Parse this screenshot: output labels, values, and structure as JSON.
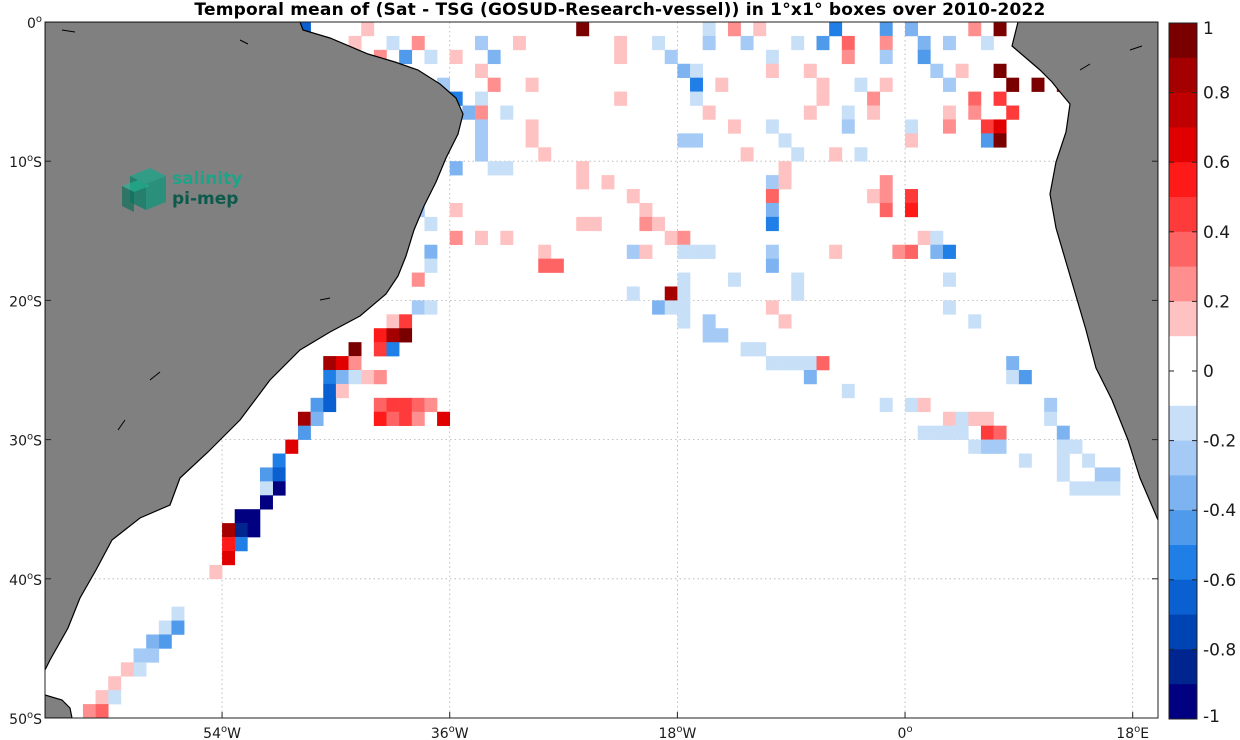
{
  "title": "Temporal mean of (Sat - TSG (GOSUD-Research-vessel)) in 1°x1° boxes over 2010-2022",
  "logo": {
    "line1": "salinity",
    "line2": "pi-mep"
  },
  "map": {
    "lon_range": [
      -68,
      20
    ],
    "lat_range": [
      -50,
      0
    ],
    "xticks": [
      {
        "value": -54,
        "num": "54",
        "deg": "o",
        "hemi": "W"
      },
      {
        "value": -36,
        "num": "36",
        "deg": "o",
        "hemi": "W"
      },
      {
        "value": -18,
        "num": "18",
        "deg": "o",
        "hemi": "W"
      },
      {
        "value": 0,
        "num": "0",
        "deg": "o",
        "hemi": ""
      },
      {
        "value": 18,
        "num": "18",
        "deg": "o",
        "hemi": "E"
      }
    ],
    "yticks": [
      {
        "value": 0,
        "num": "0",
        "deg": "o",
        "hemi": ""
      },
      {
        "value": -10,
        "num": "10",
        "deg": "o",
        "hemi": "S"
      },
      {
        "value": -20,
        "num": "20",
        "deg": "o",
        "hemi": "S"
      },
      {
        "value": -30,
        "num": "30",
        "deg": "o",
        "hemi": "S"
      },
      {
        "value": -40,
        "num": "40",
        "deg": "o",
        "hemi": "S"
      },
      {
        "value": -50,
        "num": "50",
        "deg": "o",
        "hemi": "S"
      }
    ],
    "land_color": "#808080",
    "grid": "dotted"
  },
  "colorbar": {
    "range": [
      -1,
      1
    ],
    "ticks": [
      "1",
      "0.8",
      "0.6",
      "0.4",
      "0.2",
      "0",
      "-0.2",
      "-0.4",
      "-0.6",
      "-0.8",
      "-1"
    ],
    "colors": [
      "#7a0000",
      "#a40000",
      "#c00000",
      "#e00000",
      "#ff1a1a",
      "#ff3a3a",
      "#ff6464",
      "#ff8f8f",
      "#ffc2c2",
      "#ffffff",
      "#ffffff",
      "#c8dff8",
      "#a4caf5",
      "#7db3f0",
      "#4f9aeb",
      "#1f7fe6",
      "#0a5fd1",
      "#0044b3",
      "#00258f",
      "#000080"
    ]
  },
  "chart_data": {
    "type": "heatmap",
    "title": "Temporal mean of (Sat - TSG (GOSUD-Research-vessel)) in 1°x1° boxes over 2010-2022",
    "x_units": "degrees longitude",
    "y_units": "degrees latitude",
    "cells": [
      [
        -47.5,
        -0.5,
        -0.6
      ],
      [
        -42.5,
        -0.5,
        0.2
      ],
      [
        -25.5,
        -0.5,
        0.9
      ],
      [
        -15.5,
        -0.5,
        -0.1
      ],
      [
        -13.5,
        -0.5,
        0.3
      ],
      [
        -11.5,
        -0.5,
        0.2
      ],
      [
        -5.5,
        -0.5,
        -0.5
      ],
      [
        -1.5,
        -0.5,
        -0.4
      ],
      [
        0.5,
        -0.5,
        -0.3
      ],
      [
        5.5,
        -0.5,
        0.3
      ],
      [
        7.5,
        -0.5,
        0.9
      ],
      [
        9.5,
        -0.5,
        -0.5
      ],
      [
        -43.5,
        -1.5,
        0.2
      ],
      [
        -40.5,
        -1.5,
        -0.1
      ],
      [
        -38.5,
        -1.5,
        0.3
      ],
      [
        -33.5,
        -1.5,
        -0.2
      ],
      [
        -30.5,
        -1.5,
        0.2
      ],
      [
        -22.5,
        -1.5,
        0.2
      ],
      [
        -19.5,
        -1.5,
        -0.1
      ],
      [
        -15.5,
        -1.5,
        -0.2
      ],
      [
        -12.5,
        -1.5,
        -0.2
      ],
      [
        -8.5,
        -1.5,
        -0.1
      ],
      [
        -6.5,
        -1.5,
        -0.4
      ],
      [
        -4.5,
        -1.5,
        0.4
      ],
      [
        -1.5,
        -1.5,
        0.3
      ],
      [
        1.5,
        -1.5,
        -0.3
      ],
      [
        3.5,
        -1.5,
        -0.2
      ],
      [
        6.5,
        -1.5,
        -0.1
      ],
      [
        -41.5,
        -2.5,
        0.3
      ],
      [
        -39.5,
        -2.5,
        -0.4
      ],
      [
        -37.5,
        -2.5,
        -0.1
      ],
      [
        -35.5,
        -2.5,
        0.2
      ],
      [
        -32.5,
        -2.5,
        -0.3
      ],
      [
        -22.5,
        -2.5,
        0.2
      ],
      [
        -18.5,
        -2.5,
        -0.2
      ],
      [
        -10.5,
        -2.5,
        -0.1
      ],
      [
        -4.5,
        -2.5,
        0.3
      ],
      [
        -1.5,
        -2.5,
        -0.2
      ],
      [
        1.5,
        -2.5,
        -0.4
      ],
      [
        -33.5,
        -3.5,
        0.2
      ],
      [
        -17.5,
        -3.5,
        -0.3
      ],
      [
        -16.5,
        -3.5,
        -0.1
      ],
      [
        -10.5,
        -3.5,
        0.2
      ],
      [
        -7.5,
        -3.5,
        0.2
      ],
      [
        2.5,
        -3.5,
        -0.2
      ],
      [
        4.5,
        -3.5,
        0.2
      ],
      [
        7.5,
        -3.5,
        1.0
      ],
      [
        -36.5,
        -4.5,
        -0.2
      ],
      [
        -32.5,
        -4.5,
        0.3
      ],
      [
        -29.5,
        -4.5,
        0.2
      ],
      [
        -16.5,
        -4.5,
        -0.5
      ],
      [
        -14.5,
        -4.5,
        0.2
      ],
      [
        -6.5,
        -4.5,
        0.2
      ],
      [
        -3.5,
        -4.5,
        -0.1
      ],
      [
        -1.5,
        -4.5,
        0.2
      ],
      [
        3.5,
        -4.5,
        -0.2
      ],
      [
        8.5,
        -4.5,
        0.9
      ],
      [
        10.5,
        -4.5,
        1.0
      ],
      [
        12.5,
        -4.5,
        0.8
      ],
      [
        -35.5,
        -5.5,
        -0.5
      ],
      [
        -33.5,
        -5.5,
        -0.1
      ],
      [
        -22.5,
        -5.5,
        0.2
      ],
      [
        -16.5,
        -5.5,
        -0.1
      ],
      [
        -6.5,
        -5.5,
        0.2
      ],
      [
        -2.5,
        -5.5,
        0.3
      ],
      [
        5.5,
        -5.5,
        0.4
      ],
      [
        7.5,
        -5.5,
        0.5
      ],
      [
        -34.5,
        -6.5,
        -0.3
      ],
      [
        -33.5,
        -6.5,
        0.3
      ],
      [
        -31.5,
        -6.5,
        -0.1
      ],
      [
        -15.5,
        -6.5,
        0.2
      ],
      [
        -7.5,
        -6.5,
        0.2
      ],
      [
        -4.5,
        -6.5,
        -0.1
      ],
      [
        -2.5,
        -6.5,
        0.2
      ],
      [
        3.5,
        -6.5,
        0.2
      ],
      [
        5.5,
        -6.5,
        0.3
      ],
      [
        8.5,
        -6.5,
        0.5
      ],
      [
        -33.5,
        -7.5,
        -0.2
      ],
      [
        -29.5,
        -7.5,
        0.2
      ],
      [
        -13.5,
        -7.5,
        0.2
      ],
      [
        -10.5,
        -7.5,
        -0.1
      ],
      [
        -4.5,
        -7.5,
        -0.2
      ],
      [
        0.5,
        -7.5,
        -0.1
      ],
      [
        3.5,
        -7.5,
        0.3
      ],
      [
        6.5,
        -7.5,
        0.5
      ],
      [
        7.5,
        -7.5,
        0.7
      ],
      [
        -33.5,
        -8.5,
        -0.2
      ],
      [
        -29.5,
        -8.5,
        0.2
      ],
      [
        -17.5,
        -8.5,
        -0.2
      ],
      [
        -16.5,
        -8.5,
        -0.2
      ],
      [
        -9.5,
        -8.5,
        -0.1
      ],
      [
        0.5,
        -8.5,
        0.2
      ],
      [
        6.5,
        -8.5,
        -0.4
      ],
      [
        7.5,
        -8.5,
        0.9
      ],
      [
        -33.5,
        -9.5,
        -0.2
      ],
      [
        -28.5,
        -9.5,
        0.2
      ],
      [
        -12.5,
        -9.5,
        0.2
      ],
      [
        -8.5,
        -9.5,
        -0.1
      ],
      [
        -5.5,
        -9.5,
        0.2
      ],
      [
        -3.5,
        -9.5,
        -0.1
      ],
      [
        -35.5,
        -10.5,
        -0.3
      ],
      [
        -32.5,
        -10.5,
        -0.1
      ],
      [
        -31.5,
        -10.5,
        -0.1
      ],
      [
        -25.5,
        -10.5,
        0.2
      ],
      [
        -9.5,
        -10.5,
        0.2
      ],
      [
        -25.5,
        -11.5,
        0.2
      ],
      [
        -23.5,
        -11.5,
        0.2
      ],
      [
        -10.5,
        -11.5,
        -0.2
      ],
      [
        -9.5,
        -11.5,
        0.2
      ],
      [
        -1.5,
        -11.5,
        0.3
      ],
      [
        -21.5,
        -12.5,
        0.2
      ],
      [
        -10.5,
        -12.5,
        0.4
      ],
      [
        -2.5,
        -12.5,
        0.2
      ],
      [
        -1.5,
        -12.5,
        0.3
      ],
      [
        0.5,
        -12.5,
        0.5
      ],
      [
        -38.5,
        -13.5,
        -0.2
      ],
      [
        -35.5,
        -13.5,
        0.2
      ],
      [
        -20.5,
        -13.5,
        0.2
      ],
      [
        -10.5,
        -13.5,
        -0.3
      ],
      [
        -1.5,
        -13.5,
        0.4
      ],
      [
        0.5,
        -13.5,
        0.6
      ],
      [
        -37.5,
        -14.5,
        -0.1
      ],
      [
        -25.5,
        -14.5,
        0.2
      ],
      [
        -24.5,
        -14.5,
        0.2
      ],
      [
        -20.5,
        -14.5,
        0.3
      ],
      [
        -19.5,
        -14.5,
        0.2
      ],
      [
        -10.5,
        -14.5,
        -0.5
      ],
      [
        -35.5,
        -15.5,
        0.3
      ],
      [
        -33.5,
        -15.5,
        0.2
      ],
      [
        -31.5,
        -15.5,
        0.2
      ],
      [
        -18.5,
        -15.5,
        0.2
      ],
      [
        -17.5,
        -15.5,
        0.3
      ],
      [
        1.5,
        -15.5,
        0.2
      ],
      [
        2.5,
        -15.5,
        -0.1
      ],
      [
        -37.5,
        -16.5,
        -0.3
      ],
      [
        -28.5,
        -16.5,
        0.2
      ],
      [
        -21.5,
        -16.5,
        -0.2
      ],
      [
        -20.5,
        -16.5,
        0.2
      ],
      [
        -17.5,
        -16.5,
        -0.1
      ],
      [
        -16.5,
        -16.5,
        -0.1
      ],
      [
        -15.5,
        -16.5,
        -0.1
      ],
      [
        -10.5,
        -16.5,
        -0.2
      ],
      [
        -5.5,
        -16.5,
        0.2
      ],
      [
        -0.5,
        -16.5,
        0.3
      ],
      [
        0.5,
        -16.5,
        0.4
      ],
      [
        2.5,
        -16.5,
        -0.3
      ],
      [
        3.5,
        -16.5,
        -0.5
      ],
      [
        -37.5,
        -17.5,
        -0.1
      ],
      [
        -28.5,
        -17.5,
        0.4
      ],
      [
        -27.5,
        -17.5,
        0.4
      ],
      [
        -10.5,
        -17.5,
        -0.3
      ],
      [
        -38.5,
        -18.5,
        0.3
      ],
      [
        -17.5,
        -18.5,
        -0.1
      ],
      [
        -13.5,
        -18.5,
        -0.1
      ],
      [
        -8.5,
        -18.5,
        -0.1
      ],
      [
        3.5,
        -18.5,
        -0.1
      ],
      [
        -21.5,
        -19.5,
        -0.1
      ],
      [
        -18.5,
        -19.5,
        0.8
      ],
      [
        -17.5,
        -19.5,
        -0.1
      ],
      [
        -8.5,
        -19.5,
        -0.1
      ],
      [
        -38.5,
        -20.5,
        -0.2
      ],
      [
        -37.5,
        -20.5,
        -0.1
      ],
      [
        -19.5,
        -20.5,
        -0.3
      ],
      [
        -18.5,
        -20.5,
        -0.1
      ],
      [
        -17.5,
        -20.5,
        -0.1
      ],
      [
        -10.5,
        -20.5,
        0.2
      ],
      [
        3.5,
        -20.5,
        -0.1
      ],
      [
        -40.5,
        -21.5,
        0.2
      ],
      [
        -39.5,
        -21.5,
        0.5
      ],
      [
        -17.5,
        -21.5,
        -0.1
      ],
      [
        -15.5,
        -21.5,
        -0.2
      ],
      [
        -9.5,
        -21.5,
        0.2
      ],
      [
        5.5,
        -21.5,
        -0.1
      ],
      [
        -41.5,
        -22.5,
        0.6
      ],
      [
        -40.5,
        -22.5,
        0.8
      ],
      [
        -39.5,
        -22.5,
        0.9
      ],
      [
        -15.5,
        -22.5,
        -0.2
      ],
      [
        -14.5,
        -22.5,
        -0.2
      ],
      [
        -43.5,
        -23.5,
        0.9
      ],
      [
        -41.5,
        -23.5,
        0.5
      ],
      [
        -40.5,
        -23.5,
        -0.5
      ],
      [
        -12.5,
        -23.5,
        -0.1
      ],
      [
        -11.5,
        -23.5,
        -0.1
      ],
      [
        -45.5,
        -24.5,
        0.8
      ],
      [
        -44.5,
        -24.5,
        0.7
      ],
      [
        -43.5,
        -24.5,
        0.3
      ],
      [
        -10.5,
        -24.5,
        -0.1
      ],
      [
        -9.5,
        -24.5,
        -0.1
      ],
      [
        -8.5,
        -24.5,
        -0.1
      ],
      [
        -7.5,
        -24.5,
        -0.1
      ],
      [
        -6.5,
        -24.5,
        0.4
      ],
      [
        8.5,
        -24.5,
        -0.3
      ],
      [
        -45.5,
        -25.5,
        -0.5
      ],
      [
        -44.5,
        -25.5,
        -0.3
      ],
      [
        -43.5,
        -25.5,
        -0.1
      ],
      [
        -42.5,
        -25.5,
        0.2
      ],
      [
        -41.5,
        -25.5,
        0.3
      ],
      [
        -7.5,
        -25.5,
        -0.3
      ],
      [
        8.5,
        -25.5,
        -0.1
      ],
      [
        9.5,
        -25.5,
        -0.4
      ],
      [
        -45.5,
        -26.5,
        -0.6
      ],
      [
        -44.5,
        -26.5,
        0.2
      ],
      [
        -4.5,
        -26.5,
        -0.1
      ],
      [
        -46.5,
        -27.5,
        -0.4
      ],
      [
        -45.5,
        -27.5,
        -0.6
      ],
      [
        -41.5,
        -27.5,
        0.4
      ],
      [
        -40.5,
        -27.5,
        0.5
      ],
      [
        -39.5,
        -27.5,
        0.5
      ],
      [
        -38.5,
        -27.5,
        0.4
      ],
      [
        -37.5,
        -27.5,
        0.3
      ],
      [
        -1.5,
        -27.5,
        -0.1
      ],
      [
        0.5,
        -27.5,
        -0.1
      ],
      [
        1.5,
        -27.5,
        0.2
      ],
      [
        11.5,
        -27.5,
        -0.2
      ],
      [
        -47.5,
        -28.5,
        0.8
      ],
      [
        -46.5,
        -28.5,
        -0.3
      ],
      [
        -41.5,
        -28.5,
        0.6
      ],
      [
        -40.5,
        -28.5,
        0.4
      ],
      [
        -39.5,
        -28.5,
        0.5
      ],
      [
        -38.5,
        -28.5,
        0.3
      ],
      [
        -36.5,
        -28.5,
        0.7
      ],
      [
        3.5,
        -28.5,
        0.2
      ],
      [
        4.5,
        -28.5,
        -0.1
      ],
      [
        5.5,
        -28.5,
        0.2
      ],
      [
        6.5,
        -28.5,
        0.2
      ],
      [
        11.5,
        -28.5,
        -0.1
      ],
      [
        -47.5,
        -29.5,
        -0.4
      ],
      [
        1.5,
        -29.5,
        -0.1
      ],
      [
        2.5,
        -29.5,
        -0.1
      ],
      [
        3.5,
        -29.5,
        -0.1
      ],
      [
        4.5,
        -29.5,
        -0.1
      ],
      [
        6.5,
        -29.5,
        0.5
      ],
      [
        7.5,
        -29.5,
        0.4
      ],
      [
        12.5,
        -29.5,
        -0.3
      ],
      [
        -48.5,
        -30.5,
        0.7
      ],
      [
        5.5,
        -30.5,
        -0.1
      ],
      [
        6.5,
        -30.5,
        -0.2
      ],
      [
        7.5,
        -30.5,
        -0.2
      ],
      [
        12.5,
        -30.5,
        -0.1
      ],
      [
        13.5,
        -30.5,
        -0.1
      ],
      [
        -49.5,
        -31.5,
        -0.5
      ],
      [
        9.5,
        -31.5,
        -0.1
      ],
      [
        12.5,
        -31.5,
        -0.1
      ],
      [
        14.5,
        -31.5,
        -0.1
      ],
      [
        -50.5,
        -32.5,
        -0.4
      ],
      [
        -49.5,
        -32.5,
        -0.6
      ],
      [
        12.5,
        -32.5,
        -0.1
      ],
      [
        15.5,
        -32.5,
        -0.2
      ],
      [
        16.5,
        -32.5,
        -0.2
      ],
      [
        -49.5,
        -33.5,
        -0.9
      ],
      [
        -50.5,
        -33.5,
        -0.1
      ],
      [
        13.5,
        -33.5,
        -0.1
      ],
      [
        14.5,
        -33.5,
        -0.1
      ],
      [
        15.5,
        -33.5,
        -0.1
      ],
      [
        16.5,
        -33.5,
        -0.1
      ],
      [
        -50.5,
        -34.5,
        -0.9
      ],
      [
        -51.5,
        -35.5,
        -0.9
      ],
      [
        -52.5,
        -35.5,
        -0.9
      ],
      [
        -51.5,
        -36.5,
        -0.9
      ],
      [
        -52.5,
        -36.5,
        -0.8
      ],
      [
        -53.5,
        -36.5,
        0.8
      ],
      [
        -52.5,
        -37.5,
        -0.5
      ],
      [
        -53.5,
        -37.5,
        0.6
      ],
      [
        -53.5,
        -38.5,
        0.7
      ],
      [
        -54.5,
        -39.5,
        0.2
      ],
      [
        -57.5,
        -42.5,
        -0.1
      ],
      [
        -58.5,
        -43.5,
        -0.1
      ],
      [
        -57.5,
        -43.5,
        -0.4
      ],
      [
        -58.5,
        -44.5,
        -0.4
      ],
      [
        -59.5,
        -44.5,
        -0.3
      ],
      [
        -59.5,
        -45.5,
        -0.2
      ],
      [
        -60.5,
        -45.5,
        -0.2
      ],
      [
        -60.5,
        -46.5,
        -0.1
      ],
      [
        -61.5,
        -46.5,
        0.2
      ],
      [
        -62.5,
        -47.5,
        0.2
      ],
      [
        -63.5,
        -48.5,
        0.2
      ],
      [
        -62.5,
        -48.5,
        -0.1
      ],
      [
        -64.5,
        -49.5,
        0.3
      ],
      [
        -63.5,
        -49.5,
        0.4
      ]
    ]
  }
}
